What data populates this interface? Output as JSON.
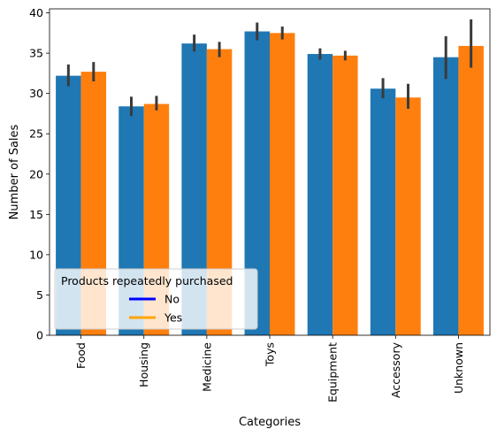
{
  "chart_data": {
    "type": "bar",
    "title": "",
    "xlabel": "Categories",
    "ylabel": "Number of Sales",
    "ylim": [
      0,
      40.5
    ],
    "yticks": [
      0,
      5,
      10,
      15,
      20,
      25,
      30,
      35,
      40
    ],
    "categories": [
      "Food",
      "Housing",
      "Medicine",
      "Toys",
      "Equipment",
      "Accessory",
      "Unknown"
    ],
    "series": [
      {
        "name": "No",
        "color": "#1f77b4",
        "values": [
          32.2,
          28.4,
          36.2,
          37.7,
          34.9,
          30.6,
          34.5
        ],
        "ci_low": [
          30.9,
          27.2,
          35.2,
          36.6,
          34.2,
          29.4,
          31.8
        ],
        "ci_high": [
          33.6,
          29.6,
          37.3,
          38.8,
          35.6,
          31.9,
          37.1
        ]
      },
      {
        "name": "Yes",
        "color": "#ff7f0e",
        "values": [
          32.7,
          28.7,
          35.5,
          37.5,
          34.7,
          29.5,
          35.9
        ],
        "ci_low": [
          31.5,
          27.9,
          34.5,
          36.7,
          34.1,
          28.1,
          33.2
        ],
        "ci_high": [
          33.9,
          29.7,
          36.4,
          38.3,
          35.3,
          31.2,
          39.2
        ]
      }
    ],
    "error_bar_color": "#3a3a3a",
    "grid": false,
    "legend": {
      "title": "Products repeatedly purchased",
      "placement": "lower-left",
      "entries": [
        {
          "label": "No",
          "color": "#0000ff"
        },
        {
          "label": "Yes",
          "color": "#ffa500"
        }
      ]
    }
  }
}
